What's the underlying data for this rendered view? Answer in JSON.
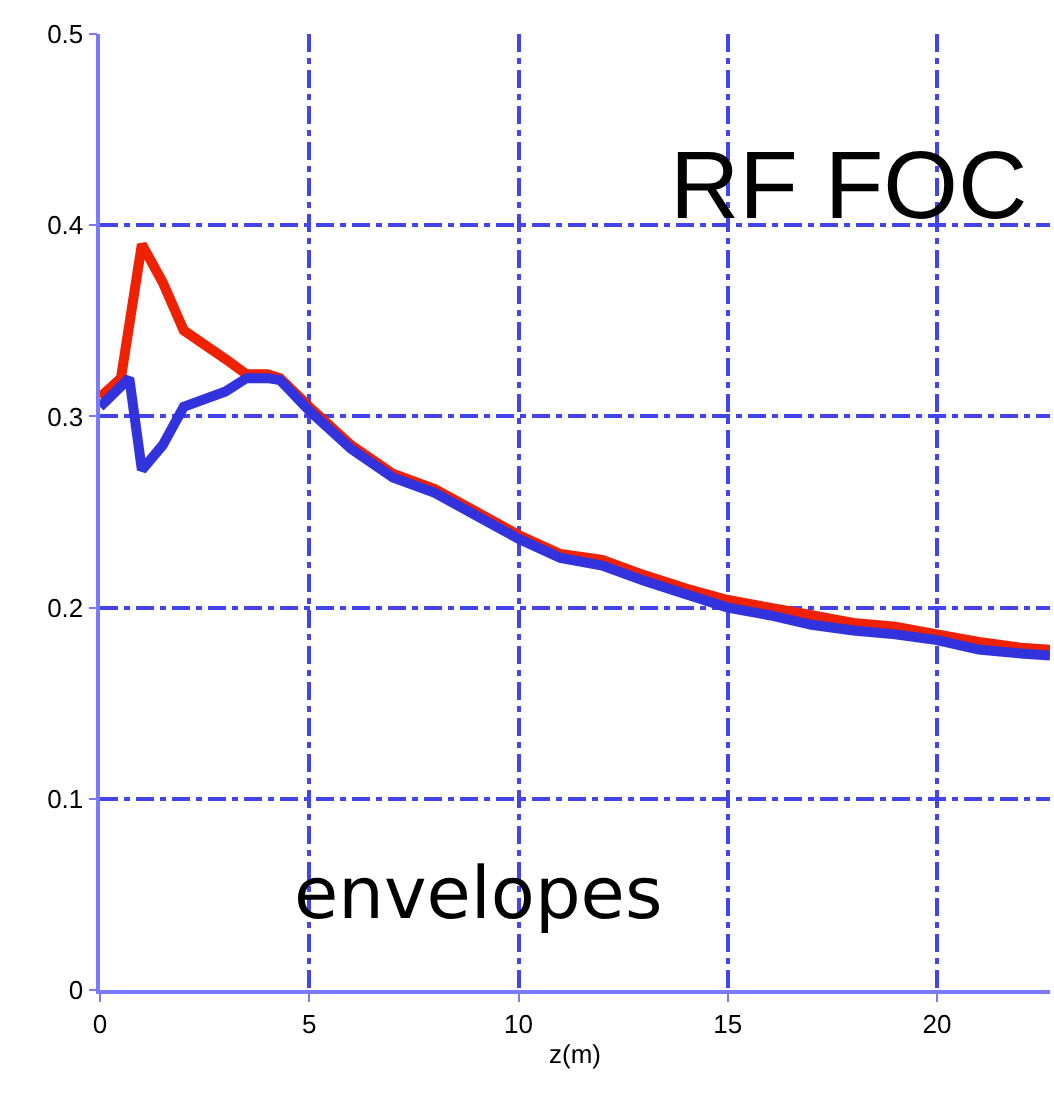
{
  "chart_data": {
    "type": "line",
    "xlabel": "z(m)",
    "annotations": [
      "RF FOC",
      "envelopes"
    ],
    "xlim": [
      0,
      22.7
    ],
    "xticks": [
      0,
      5,
      10,
      15,
      20
    ],
    "ylim": [
      0,
      0.5
    ],
    "yticks": [
      0,
      0.1,
      0.2,
      0.3,
      0.4,
      0.5
    ],
    "grid": true,
    "marker": "none",
    "line_style": "solid",
    "series": [
      {
        "color": "#ee2200",
        "x": [
          0,
          0.5,
          1,
          1.5,
          2,
          3,
          3.5,
          4,
          4.3,
          5,
          6,
          7,
          8,
          9,
          10,
          11,
          12,
          13,
          14,
          15,
          16,
          17,
          18,
          19,
          20,
          21,
          22,
          22.7
        ],
        "values": [
          0.31,
          0.32,
          0.39,
          0.37,
          0.345,
          0.33,
          0.322,
          0.322,
          0.32,
          0.305,
          0.285,
          0.27,
          0.262,
          0.25,
          0.238,
          0.228,
          0.225,
          0.217,
          0.21,
          0.204,
          0.2,
          0.196,
          0.192,
          0.19,
          0.186,
          0.182,
          0.179,
          0.178
        ]
      },
      {
        "color": "#3333dd",
        "x": [
          0,
          0.7,
          1,
          1.5,
          2,
          3,
          3.5,
          4,
          4.3,
          5,
          6,
          7,
          8,
          9,
          10,
          11,
          12,
          13,
          14,
          15,
          16,
          17,
          18,
          19,
          20,
          21,
          22,
          22.7
        ],
        "values": [
          0.305,
          0.32,
          0.272,
          0.285,
          0.305,
          0.313,
          0.32,
          0.32,
          0.319,
          0.303,
          0.283,
          0.268,
          0.26,
          0.248,
          0.236,
          0.226,
          0.222,
          0.214,
          0.207,
          0.2,
          0.196,
          0.191,
          0.188,
          0.186,
          0.183,
          0.178,
          0.176,
          0.175
        ]
      }
    ]
  }
}
